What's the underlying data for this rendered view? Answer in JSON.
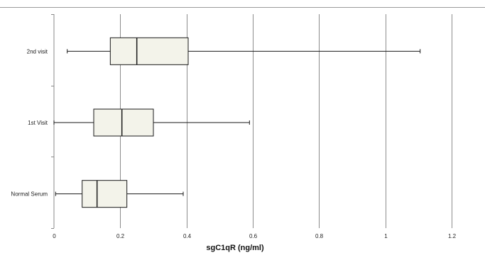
{
  "chart_data": {
    "type": "box",
    "title": "",
    "xlabel": "sgC1qR (ng/ml)",
    "ylabel": "",
    "xlim": [
      0,
      1.2
    ],
    "xticks": [
      0,
      0.2,
      0.4,
      0.6,
      0.8,
      1,
      1.2
    ],
    "grid": "vertical",
    "legend": "none",
    "colors": {
      "box_fill": "#f3f3ea",
      "stroke": "#1a1a1a",
      "grid": "#8c8c8c"
    },
    "categories": [
      "2nd visit",
      "1st Visit",
      "Normal Serum"
    ],
    "boxes": [
      {
        "label": "2nd visit",
        "min": 0.04,
        "q1": 0.17,
        "median": 0.25,
        "q3": 0.405,
        "max": 1.105
      },
      {
        "label": "1st Visit",
        "min": 0.0,
        "q1": 0.12,
        "median": 0.205,
        "q3": 0.3,
        "max": 0.59
      },
      {
        "label": "Normal Serum",
        "min": 0.005,
        "q1": 0.085,
        "median": 0.13,
        "q3": 0.22,
        "max": 0.39
      }
    ]
  }
}
